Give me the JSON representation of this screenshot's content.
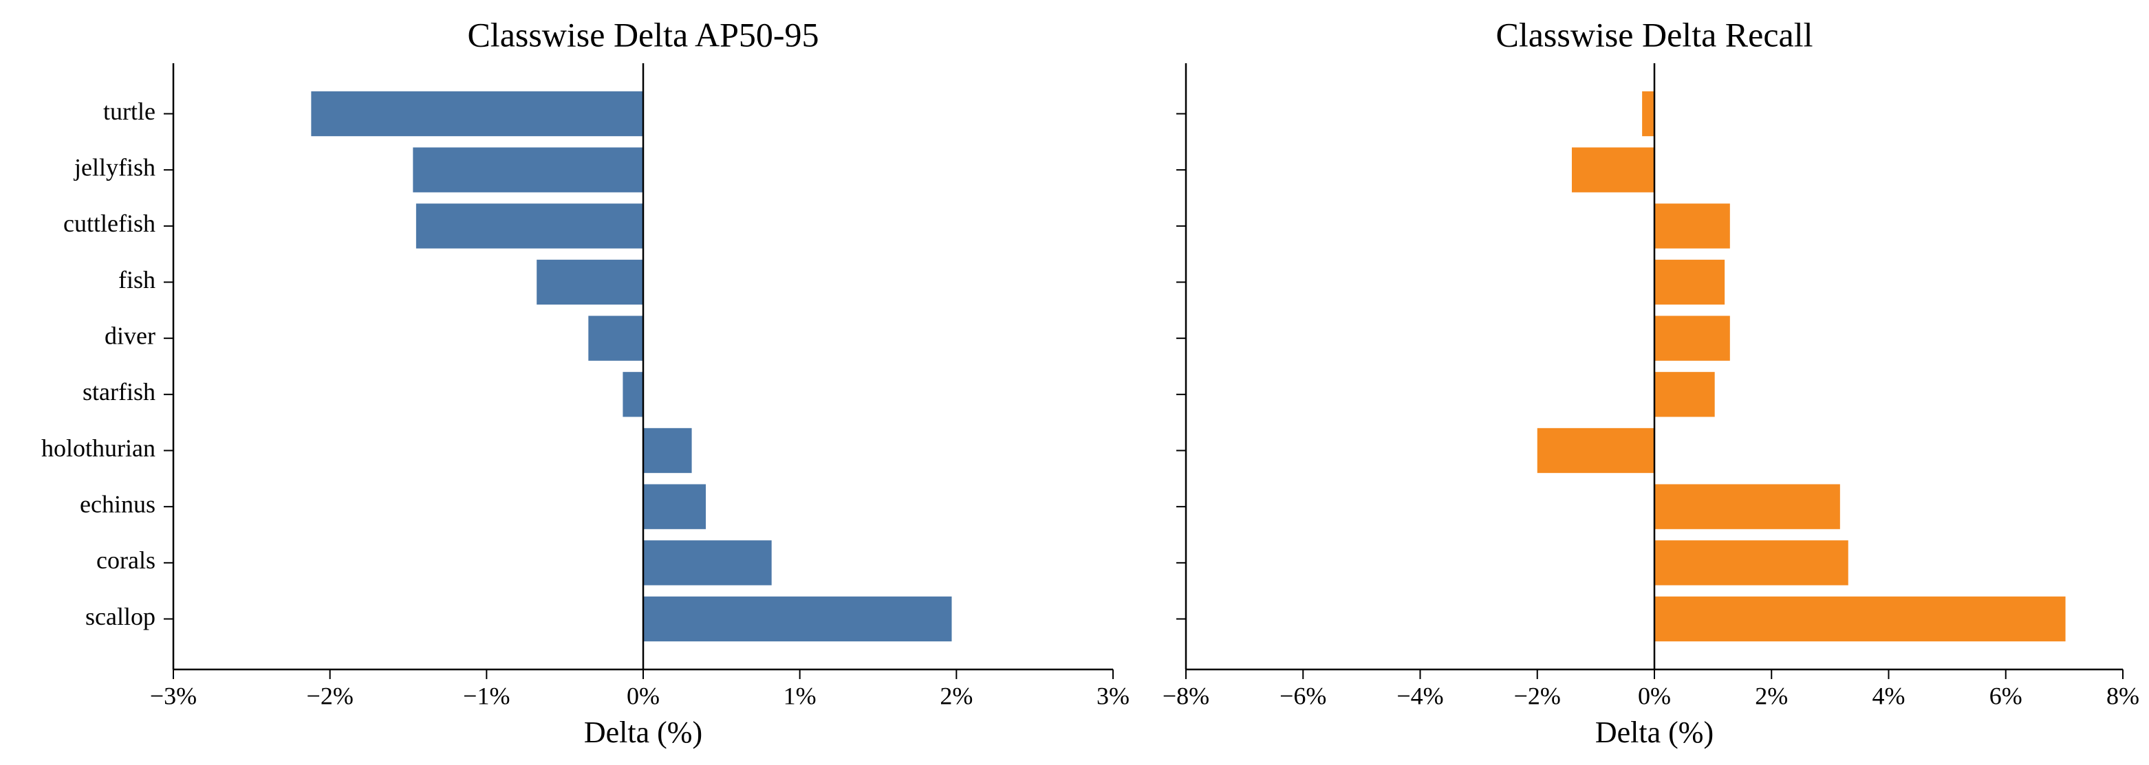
{
  "chart_data": [
    {
      "type": "bar",
      "orientation": "horizontal",
      "title": "Classwise Delta AP50-95",
      "x_label": "Delta (%)",
      "categories": [
        "turtle",
        "jellyfish",
        "cuttlefish",
        "fish",
        "diver",
        "starfish",
        "holothurian",
        "echinus",
        "corals",
        "scallop"
      ],
      "values": [
        -2.12,
        -1.47,
        -1.45,
        -0.68,
        -0.35,
        -0.13,
        0.31,
        0.4,
        0.82,
        1.97
      ],
      "color": "#4c78a8",
      "xlim": [
        -3,
        3
      ],
      "xticks": [
        {
          "value": -3,
          "label": "−3%"
        },
        {
          "value": -2,
          "label": "−2%"
        },
        {
          "value": -1,
          "label": "−1%"
        },
        {
          "value": 0,
          "label": "0%"
        },
        {
          "value": 1,
          "label": "1%"
        },
        {
          "value": 2,
          "label": "2%"
        },
        {
          "value": 3,
          "label": "3%"
        }
      ]
    },
    {
      "type": "bar",
      "orientation": "horizontal",
      "title": "Classwise Delta Recall",
      "x_label": "Delta (%)",
      "categories": [
        null,
        null,
        null,
        null,
        null,
        null,
        null,
        null,
        null,
        null
      ],
      "values": [
        -0.21,
        -1.41,
        1.29,
        1.2,
        1.29,
        1.03,
        -2.0,
        3.17,
        3.31,
        7.02
      ],
      "color": "#f58a1f",
      "xlim": [
        -8,
        8
      ],
      "xticks": [
        {
          "value": -8,
          "label": "−8%"
        },
        {
          "value": -6,
          "label": "−6%"
        },
        {
          "value": -4,
          "label": "−4%"
        },
        {
          "value": -2,
          "label": "−2%"
        },
        {
          "value": 0,
          "label": "0%"
        },
        {
          "value": 2,
          "label": "2%"
        },
        {
          "value": 4,
          "label": "4%"
        },
        {
          "value": 6,
          "label": "6%"
        },
        {
          "value": 8,
          "label": "8%"
        }
      ]
    }
  ]
}
